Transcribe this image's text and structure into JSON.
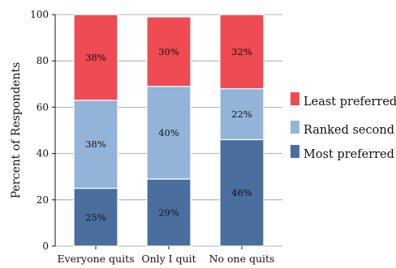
{
  "chart_data": {
    "type": "bar",
    "stacked": true,
    "categories": [
      "Everyone quits",
      "Only I quit",
      "No one quits"
    ],
    "series": [
      {
        "name": "Most preferred",
        "values": [
          25,
          29,
          46
        ],
        "labels": [
          "25%",
          "29%",
          "46%"
        ],
        "color": "#4a6f9e"
      },
      {
        "name": "Ranked second",
        "values": [
          38,
          40,
          22
        ],
        "labels": [
          "38%",
          "40%",
          "22%"
        ],
        "color": "#93b4d8"
      },
      {
        "name": "Least preferred",
        "values": [
          38,
          30,
          32
        ],
        "labels": [
          "38%",
          "30%",
          "32%"
        ],
        "color": "#ee4b52"
      }
    ],
    "legend_order": [
      "Least preferred",
      "Ranked second",
      "Most preferred"
    ],
    "legend_position": "right",
    "ylabel": "Percent of Respondents",
    "xlabel": "",
    "ylim": [
      0,
      100
    ],
    "yticks": [
      0,
      20,
      40,
      60,
      80,
      100
    ],
    "grid": "horizontal"
  }
}
